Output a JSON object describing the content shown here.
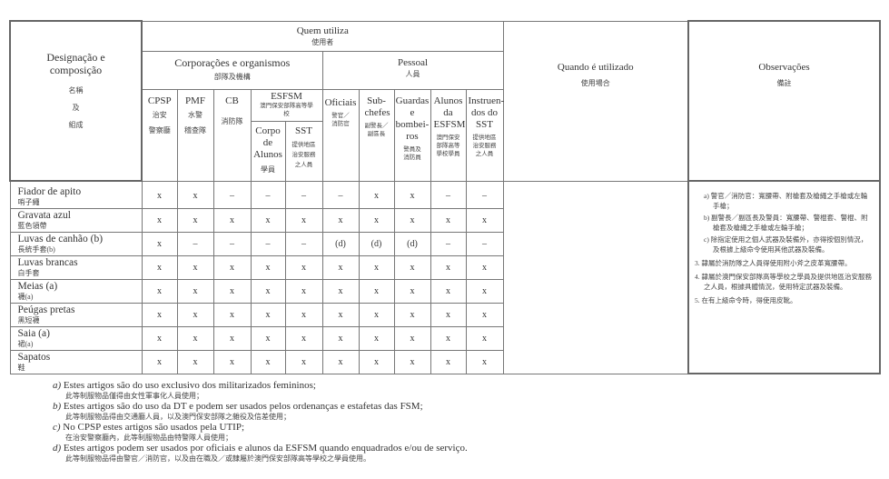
{
  "header": {
    "designation": "Designação e composição",
    "designation_zh": [
      "名稱",
      "及",
      "組成"
    ],
    "who_uses": "Quem utiliza",
    "who_uses_zh": "使用者",
    "corporations": "Corporações e organismos",
    "corporations_zh": "部隊及機構",
    "personnel": "Pessoal",
    "personnel_zh": "人員",
    "when_used": "Quando é utilizado",
    "when_used_zh": "使用場合",
    "observations": "Observações",
    "observations_zh": "備註",
    "cpsp": "CPSP",
    "cpsp_zh": [
      "治安",
      "警察廳"
    ],
    "pmf": "PMF",
    "pmf_zh": [
      "水警",
      "稽查隊"
    ],
    "cb": "CB",
    "cb_zh": "消防隊",
    "esfsm": "ESFSM",
    "esfsm_zh": "澳門保安部隊高等學校",
    "corpo": "Corpo de Alunos",
    "corpo_zh": "學員",
    "sst": "SST",
    "sst_zh": "提供地區治安服務之人員",
    "oficiais": "Oficiais",
    "oficiais_zh": "警官／消防官",
    "subchefes": "Sub-chefes",
    "subchefes_zh": "副警長／副區長",
    "guardas": "Guardas e bombei-ros",
    "guardas_zh": "警員及消防員",
    "alunos": "Alunos da ESFSM",
    "alunos_zh": "澳門保安部隊高等學校學員",
    "instruendos": "Instruen-dos do SST",
    "instruendos_zh": "提供地區治安服務之人員"
  },
  "rows": [
    {
      "pt": "Fiador de apito",
      "zh": "哨子繩",
      "values": [
        "x",
        "x",
        "–",
        "–",
        "–",
        "–",
        "x",
        "x",
        "–",
        "–"
      ]
    },
    {
      "pt": "Gravata azul",
      "zh": "藍色領帶",
      "values": [
        "x",
        "x",
        "x",
        "x",
        "x",
        "x",
        "x",
        "x",
        "x",
        "x"
      ]
    },
    {
      "pt": "Luvas de canhão (b)",
      "zh": "長統手套(b)",
      "values": [
        "x",
        "–",
        "–",
        "–",
        "–",
        "(d)",
        "(d)",
        "(d)",
        "–",
        "–"
      ]
    },
    {
      "pt": "Luvas brancas",
      "zh": "白手套",
      "values": [
        "x",
        "x",
        "x",
        "x",
        "x",
        "x",
        "x",
        "x",
        "x",
        "x"
      ]
    },
    {
      "pt": "Meias (a)",
      "zh": "襪(a)",
      "values": [
        "x",
        "x",
        "x",
        "x",
        "x",
        "x",
        "x",
        "x",
        "x",
        "x"
      ]
    },
    {
      "pt": "Peúgas pretas",
      "zh": "黑短襪",
      "values": [
        "x",
        "x",
        "x",
        "x",
        "x",
        "x",
        "x",
        "x",
        "x",
        "x"
      ]
    },
    {
      "pt": "Saia (a)",
      "zh": "裙(a)",
      "values": [
        "x",
        "x",
        "x",
        "x",
        "x",
        "x",
        "x",
        "x",
        "x",
        "x"
      ]
    },
    {
      "pt": "Sapatos",
      "zh": "鞋",
      "values": [
        "x",
        "x",
        "x",
        "x",
        "x",
        "x",
        "x",
        "x",
        "x",
        "x"
      ]
    }
  ],
  "observations": {
    "sub": [
      "a) 警官／消防官：寬腰帶、附槍套及槍繩之手槍或左輪手槍；",
      "b) 副警長／副區長及警員：寬腰帶、警棍套、警棍、附槍套及槍繩之手槍或左輪手槍；",
      "c) 除指定使用之個人武器及裝備外，亦得按個別情況，及根據上級命令使用其他武器及裝備。"
    ],
    "numbered": [
      "3. 隸屬於消防隊之人員得使用附小斧之皮革寬腰帶。",
      "4. 隸屬於澳門保安部隊高等學校之學員及提供地區治安服務之人員，根據具體情況，使用特定武器及裝備。",
      "5. 在有上級命令時，得使用皮靴。"
    ]
  },
  "footnotes": [
    {
      "label": "a)",
      "pt": "Estes artigos são do uso exclusivo dos militarizados femininos;",
      "zh": "此等制服物品僅得由女性軍事化人員使用；"
    },
    {
      "label": "b)",
      "pt": "Estes artigos são do uso da DT e podem ser usados pelos ordenanças e estafetas das FSM;",
      "zh": "此等制服物品得由交通廳人員，以及澳門保安部隊之雜役及信差使用；"
    },
    {
      "label": "c)",
      "pt": "No CPSP estes artigos são usados pela UTIP;",
      "zh": "在治安警察廳內，此等制服物品由特警隊人員使用；"
    },
    {
      "label": "d)",
      "pt": "Estes artigos podem ser usados por oficiais e alunos da ESFSM quando enquadrados e/ou de serviço.",
      "zh": "此等制服物品得由警官／消防官，以及由在職及／或隸屬於澳門保安部隊高等學校之學員使用。"
    }
  ]
}
